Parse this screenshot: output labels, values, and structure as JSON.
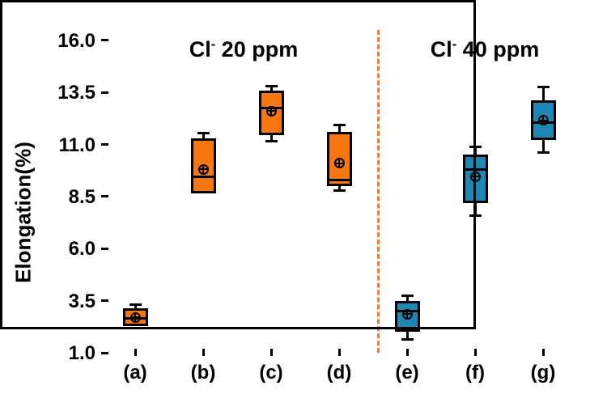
{
  "chart_data": {
    "type": "box",
    "title": "",
    "ylabel": "Elongation(%)",
    "ylim": [
      0.85,
      16.65
    ],
    "yticks": [
      {
        "label": "16.0",
        "value": 16.0
      },
      {
        "label": "13.5",
        "value": 13.5
      },
      {
        "label": "11.0",
        "value": 11.0
      },
      {
        "label": "8.5",
        "value": 8.5
      },
      {
        "label": "6.0",
        "value": 6.0
      },
      {
        "label": "3.5",
        "value": 3.5
      },
      {
        "label": "1.0",
        "value": 1.0
      }
    ],
    "categories": [
      "(a)",
      "(b)",
      "(c)",
      "(d)",
      "(e)",
      "(f)",
      "(g)"
    ],
    "grid": false,
    "legend": "none",
    "frame_color": "#000000",
    "groups": [
      {
        "label": "Cl- 20 ppm",
        "label_base": "Cl",
        "label_sup": "-",
        "label_rest": " 20 ppm",
        "color": "#F7760F"
      },
      {
        "label": "Cl- 40 ppm",
        "label_base": "Cl",
        "label_sup": "-",
        "label_rest": " 40 ppm",
        "color": "#1F87B4"
      }
    ],
    "separator": {
      "x_fraction": 0.583,
      "color": "#ED7D31",
      "style": "dashed"
    },
    "series": [
      {
        "category": "(a)",
        "group": 0,
        "whisker_low": 2.3,
        "q1": 2.3,
        "median": 2.65,
        "mean": 2.7,
        "q3": 3.15,
        "whisker_high": 3.3
      },
      {
        "category": "(b)",
        "group": 0,
        "whisker_low": 8.65,
        "q1": 8.65,
        "median": 9.45,
        "mean": 9.8,
        "q3": 11.3,
        "whisker_high": 11.55
      },
      {
        "category": "(c)",
        "group": 0,
        "whisker_low": 11.15,
        "q1": 11.45,
        "median": 12.75,
        "mean": 12.6,
        "q3": 13.6,
        "whisker_high": 13.8
      },
      {
        "category": "(d)",
        "group": 0,
        "whisker_low": 8.8,
        "q1": 9.0,
        "median": 9.3,
        "mean": 10.1,
        "q3": 11.6,
        "whisker_high": 11.95
      },
      {
        "category": "(e)",
        "group": 1,
        "whisker_low": 1.65,
        "q1": 2.0,
        "median": 3.0,
        "mean": 2.85,
        "q3": 3.5,
        "whisker_high": 3.75
      },
      {
        "category": "(f)",
        "group": 1,
        "whisker_low": 7.6,
        "q1": 8.2,
        "median": 9.8,
        "mean": 9.45,
        "q3": 10.5,
        "whisker_high": 10.9
      },
      {
        "category": "(g)",
        "group": 1,
        "whisker_low": 10.6,
        "q1": 11.2,
        "median": 12.05,
        "mean": 12.15,
        "q3": 13.1,
        "whisker_high": 13.75
      }
    ]
  }
}
